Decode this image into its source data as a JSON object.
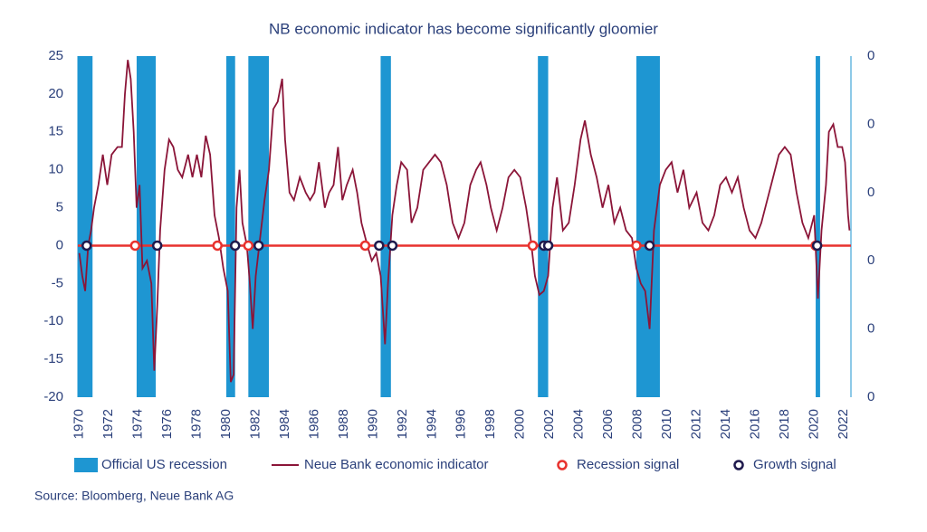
{
  "chart_data": {
    "type": "line",
    "title": "NB economic indicator has become significantly gloomier",
    "source": "Source: Bloomberg, Neue Bank AG",
    "xlim": [
      1969.9,
      2022.5
    ],
    "xticks": [
      1970,
      1972,
      1974,
      1976,
      1978,
      1980,
      1982,
      1984,
      1986,
      1988,
      1990,
      1992,
      1994,
      1996,
      1998,
      2000,
      2002,
      2004,
      2006,
      2008,
      2010,
      2012,
      2014,
      2016,
      2018,
      2020,
      2022
    ],
    "ylim": [
      -20,
      25
    ],
    "yticks": [
      -20,
      -15,
      -10,
      -5,
      0,
      5,
      10,
      15,
      20,
      25
    ],
    "y2lim": [
      0,
      5
    ],
    "y2ticks": [
      {
        "value": 0,
        "label": "0"
      },
      {
        "value": 1,
        "label": "0"
      },
      {
        "value": 2,
        "label": "0"
      },
      {
        "value": 3,
        "label": "0"
      },
      {
        "value": 4,
        "label": "0"
      },
      {
        "value": 5,
        "label": "0"
      }
    ],
    "series": [
      {
        "name": "Official US recession",
        "type": "band",
        "color": "#1e96d2",
        "starts": [
          1969.9,
          1973.9,
          1980.0,
          1981.5,
          1990.5,
          2001.2,
          2007.9,
          2020.1
        ],
        "ends": [
          1970.9,
          1975.2,
          1980.6,
          1982.9,
          1991.2,
          2001.9,
          2009.5,
          2020.4
        ]
      },
      {
        "name": "Neue Bank economic indicator",
        "type": "line",
        "color": "#8b1538",
        "x": [
          1970.0,
          1970.2,
          1970.4,
          1970.6,
          1970.8,
          1971.0,
          1971.3,
          1971.6,
          1971.9,
          1972.2,
          1972.6,
          1972.9,
          1973.1,
          1973.3,
          1973.5,
          1973.7,
          1973.9,
          1974.1,
          1974.3,
          1974.6,
          1974.9,
          1975.1,
          1975.3,
          1975.5,
          1975.8,
          1976.1,
          1976.4,
          1976.7,
          1977.0,
          1977.4,
          1977.7,
          1978.0,
          1978.3,
          1978.6,
          1978.9,
          1979.2,
          1979.5,
          1979.8,
          1980.1,
          1980.3,
          1980.5,
          1980.7,
          1980.9,
          1981.1,
          1981.4,
          1981.6,
          1981.8,
          1982.0,
          1982.3,
          1982.6,
          1982.9,
          1983.2,
          1983.5,
          1983.8,
          1984.0,
          1984.3,
          1984.6,
          1985.0,
          1985.4,
          1985.7,
          1986.0,
          1986.3,
          1986.7,
          1987.0,
          1987.3,
          1987.6,
          1987.9,
          1988.2,
          1988.6,
          1988.9,
          1989.2,
          1989.6,
          1989.9,
          1990.2,
          1990.5,
          1990.8,
          1991.0,
          1991.3,
          1991.6,
          1991.9,
          1992.3,
          1992.6,
          1993.0,
          1993.4,
          1993.8,
          1994.2,
          1994.6,
          1995.0,
          1995.4,
          1995.8,
          1996.2,
          1996.6,
          1997.0,
          1997.3,
          1997.7,
          1998.0,
          1998.4,
          1998.8,
          1999.2,
          1999.6,
          2000.0,
          2000.4,
          2000.7,
          2001.0,
          2001.3,
          2001.6,
          2001.9,
          2002.2,
          2002.5,
          2002.9,
          2003.3,
          2003.7,
          2004.1,
          2004.4,
          2004.8,
          2005.2,
          2005.6,
          2006.0,
          2006.4,
          2006.8,
          2007.2,
          2007.6,
          2007.9,
          2008.2,
          2008.5,
          2008.8,
          2009.1,
          2009.5,
          2009.9,
          2010.3,
          2010.7,
          2011.1,
          2011.5,
          2012.0,
          2012.4,
          2012.8,
          2013.2,
          2013.6,
          2014.0,
          2014.4,
          2014.8,
          2015.2,
          2015.6,
          2016.0,
          2016.4,
          2016.8,
          2017.2,
          2017.6,
          2018.0,
          2018.4,
          2018.8,
          2019.2,
          2019.6,
          2020.0,
          2020.25,
          2020.5,
          2020.8,
          2021.0,
          2021.3,
          2021.6,
          2021.9,
          2022.1,
          2022.3,
          2022.4
        ],
        "values": [
          -1,
          -4,
          -6,
          0,
          2,
          5,
          8,
          12,
          8,
          12,
          13,
          13,
          20,
          24.5,
          22,
          15,
          5,
          8,
          -3,
          -2,
          -5,
          -16.5,
          -8,
          2,
          10,
          14,
          13,
          10,
          9,
          12,
          9,
          12,
          9,
          14.5,
          12,
          4,
          1,
          -3,
          -6,
          -18,
          -17,
          5,
          10,
          3,
          0,
          -5,
          -11,
          -4,
          1,
          6,
          10,
          18,
          19,
          22,
          14,
          7,
          6,
          9,
          7,
          6,
          7,
          11,
          5,
          7,
          8,
          13,
          6,
          8,
          10,
          7,
          3,
          0,
          -2,
          -1,
          -4,
          -13,
          -5,
          4,
          8,
          11,
          10,
          3,
          5,
          10,
          11,
          12,
          11,
          8,
          3,
          1,
          3,
          8,
          10,
          11,
          8,
          5,
          2,
          5,
          9,
          10,
          9,
          5,
          1,
          -4,
          -6.5,
          -6,
          -4,
          5,
          9,
          2,
          3,
          8,
          14,
          16.5,
          12,
          9,
          5,
          8,
          3,
          5,
          2,
          1,
          -3,
          -5,
          -6,
          -11,
          2,
          8,
          10,
          11,
          7,
          10,
          5,
          7,
          3,
          2,
          4,
          8,
          9,
          7,
          9,
          5,
          2,
          1,
          3,
          6,
          9,
          12,
          13,
          12,
          7,
          3,
          1,
          4,
          -7,
          2,
          8,
          15,
          16,
          13,
          13,
          11,
          4,
          2
        ]
      },
      {
        "name": "Recession signal",
        "type": "marker",
        "color": "#e8322e",
        "x": [
          1973.8,
          1979.4,
          1981.5,
          1989.45,
          2000.85,
          2007.9,
          2020.1
        ],
        "values": [
          0,
          0,
          0,
          0,
          0,
          0,
          0
        ]
      },
      {
        "name": "Growth signal",
        "type": "marker",
        "color": "#1f1a4d",
        "x": [
          1970.5,
          1975.3,
          1980.6,
          1982.2,
          1990.4,
          1991.3,
          2001.6,
          2001.9,
          2008.8,
          2020.2
        ],
        "values": [
          0,
          0,
          0,
          0,
          0,
          0,
          0,
          0,
          0,
          0
        ]
      }
    ]
  }
}
